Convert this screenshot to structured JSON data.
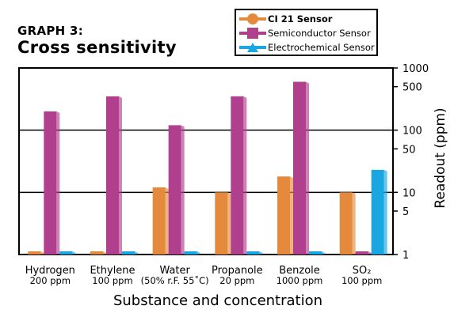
{
  "graph_label": "GRAPH 3:",
  "graph_title": "Cross sensitivity",
  "legend": [
    {
      "label": "CI 21 Sensor",
      "color": "#e58a3c",
      "marker": "circle-icon",
      "bold": true
    },
    {
      "label": "Semiconductor Sensor",
      "color": "#b0408e",
      "marker": "square-icon",
      "bold": false
    },
    {
      "label": "Electrochemical Sensor",
      "color": "#1aa6e0",
      "marker": "triangle-icon",
      "bold": false
    }
  ],
  "chart_data": {
    "type": "bar",
    "scale": "log",
    "xlabel": "Substance and concentration",
    "ylabel": "Readout (ppm)",
    "ylim": [
      1,
      1000
    ],
    "yticks": [
      "1",
      "5",
      "10",
      "50",
      "100",
      "500",
      "1000"
    ],
    "categories": [
      {
        "name": "Hydrogen",
        "conc": "200 ppm"
      },
      {
        "name": "Ethylene",
        "conc": "100 ppm"
      },
      {
        "name": "Water",
        "conc": "(50% r.F. 55˚C)"
      },
      {
        "name": "Propanole",
        "conc": "20 ppm"
      },
      {
        "name": "Benzole",
        "conc": "1000 ppm"
      },
      {
        "name": "SO₂",
        "conc": "100 ppm"
      }
    ],
    "series": [
      {
        "name": "CI 21 Sensor",
        "color": "#e58a3c",
        "values": [
          1,
          1,
          12,
          10,
          18,
          10
        ]
      },
      {
        "name": "Semiconductor Sensor",
        "color": "#b0408e",
        "values": [
          200,
          350,
          120,
          350,
          600,
          1
        ]
      },
      {
        "name": "Electrochemical Sensor",
        "color": "#1aa6e0",
        "values": [
          1,
          1,
          1,
          1,
          1,
          23
        ]
      }
    ]
  }
}
